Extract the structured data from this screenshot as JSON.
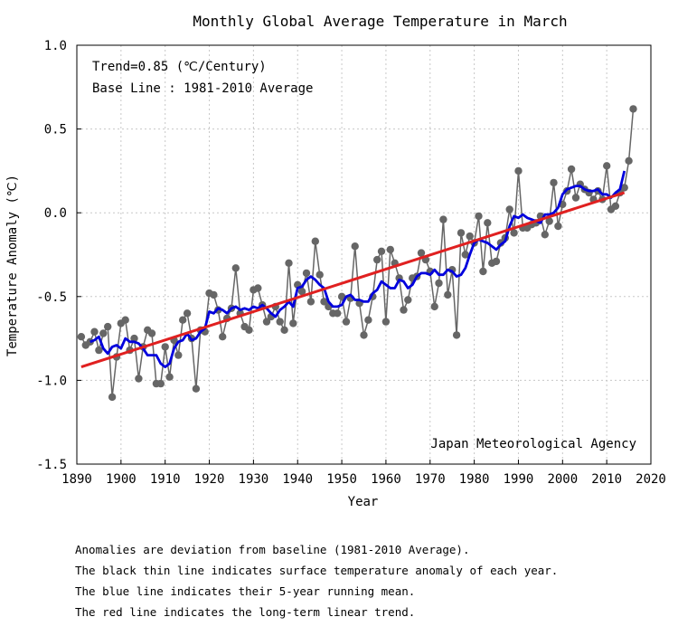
{
  "chart_data": {
    "type": "line",
    "title": "Monthly Global Average Temperature in March",
    "xlabel": "Year",
    "ylabel": "Temperature Anomaly (℃)",
    "xlim": [
      1890,
      2020
    ],
    "ylim": [
      -1.5,
      1.0
    ],
    "x_ticks": [
      1890,
      1900,
      1910,
      1920,
      1930,
      1940,
      1950,
      1960,
      1970,
      1980,
      1990,
      2000,
      2010,
      2020
    ],
    "y_ticks": [
      1.0,
      0.5,
      0.0,
      -0.5,
      -1.0,
      -1.5
    ],
    "y_tick_labels": [
      "1.0",
      "0.5",
      "0.0",
      "-0.5",
      "-1.0",
      "-1.5"
    ],
    "grid": true,
    "annotations": [
      "Trend=0.85 (℃/Century)",
      "Base Line : 1981-2010 Average",
      "Japan Meteorological Agency"
    ],
    "colors": {
      "anomaly": "#666666",
      "running_mean": "#0000dd",
      "trend": "#e02020"
    },
    "series": [
      {
        "role": "annual anomaly",
        "x": [
          1891,
          1892,
          1893,
          1894,
          1895,
          1896,
          1897,
          1898,
          1899,
          1900,
          1901,
          1902,
          1903,
          1904,
          1905,
          1906,
          1907,
          1908,
          1909,
          1910,
          1911,
          1912,
          1913,
          1914,
          1915,
          1916,
          1917,
          1918,
          1919,
          1920,
          1921,
          1922,
          1923,
          1924,
          1925,
          1926,
          1927,
          1928,
          1929,
          1930,
          1931,
          1932,
          1933,
          1934,
          1935,
          1936,
          1937,
          1938,
          1939,
          1940,
          1941,
          1942,
          1943,
          1944,
          1945,
          1946,
          1947,
          1948,
          1949,
          1950,
          1951,
          1952,
          1953,
          1954,
          1955,
          1956,
          1957,
          1958,
          1959,
          1960,
          1961,
          1962,
          1963,
          1964,
          1965,
          1966,
          1967,
          1968,
          1969,
          1970,
          1971,
          1972,
          1973,
          1974,
          1975,
          1976,
          1977,
          1978,
          1979,
          1980,
          1981,
          1982,
          1983,
          1984,
          1985,
          1986,
          1987,
          1988,
          1989,
          1990,
          1991,
          1992,
          1993,
          1994,
          1995,
          1996,
          1997,
          1998,
          1999,
          2000,
          2001,
          2002,
          2003,
          2004,
          2005,
          2006,
          2007,
          2008,
          2009,
          2010,
          2011,
          2012,
          2013,
          2014,
          2015,
          2016
        ],
        "values": [
          -0.74,
          -0.79,
          -0.77,
          -0.71,
          -0.82,
          -0.72,
          -0.68,
          -1.1,
          -0.86,
          -0.66,
          -0.64,
          -0.82,
          -0.75,
          -0.99,
          -0.8,
          -0.7,
          -0.72,
          -1.02,
          -1.02,
          -0.8,
          -0.98,
          -0.76,
          -0.85,
          -0.64,
          -0.6,
          -0.75,
          -1.05,
          -0.7,
          -0.71,
          -0.48,
          -0.49,
          -0.58,
          -0.74,
          -0.63,
          -0.57,
          -0.33,
          -0.6,
          -0.68,
          -0.7,
          -0.46,
          -0.45,
          -0.55,
          -0.65,
          -0.62,
          -0.56,
          -0.65,
          -0.7,
          -0.3,
          -0.66,
          -0.43,
          -0.47,
          -0.36,
          -0.53,
          -0.17,
          -0.37,
          -0.53,
          -0.56,
          -0.6,
          -0.6,
          -0.5,
          -0.65,
          -0.51,
          -0.2,
          -0.54,
          -0.73,
          -0.64,
          -0.5,
          -0.28,
          -0.23,
          -0.65,
          -0.22,
          -0.3,
          -0.39,
          -0.58,
          -0.52,
          -0.39,
          -0.38,
          -0.24,
          -0.28,
          -0.35,
          -0.56,
          -0.42,
          -0.04,
          -0.49,
          -0.34,
          -0.73,
          -0.12,
          -0.25,
          -0.14,
          -0.18,
          -0.02,
          -0.35,
          -0.06,
          -0.3,
          -0.29,
          -0.18,
          -0.15,
          0.02,
          -0.12,
          0.25,
          -0.09,
          -0.09,
          -0.07,
          -0.06,
          -0.02,
          -0.13,
          -0.05,
          0.18,
          -0.08,
          0.05,
          0.13,
          0.26,
          0.09,
          0.17,
          0.14,
          0.12,
          0.08,
          0.13,
          0.08,
          0.28,
          0.02,
          0.04,
          0.12,
          0.15,
          0.31,
          0.62
        ]
      },
      {
        "role": "5-year running mean",
        "x": [
          1893,
          1894,
          1895,
          1896,
          1897,
          1898,
          1899,
          1900,
          1901,
          1902,
          1903,
          1904,
          1905,
          1906,
          1907,
          1908,
          1909,
          1910,
          1911,
          1912,
          1913,
          1914,
          1915,
          1916,
          1917,
          1918,
          1919,
          1920,
          1921,
          1922,
          1923,
          1924,
          1925,
          1926,
          1927,
          1928,
          1929,
          1930,
          1931,
          1932,
          1933,
          1934,
          1935,
          1936,
          1937,
          1938,
          1939,
          1940,
          1941,
          1942,
          1943,
          1944,
          1945,
          1946,
          1947,
          1948,
          1949,
          1950,
          1951,
          1952,
          1953,
          1954,
          1955,
          1956,
          1957,
          1958,
          1959,
          1960,
          1961,
          1962,
          1963,
          1964,
          1965,
          1966,
          1967,
          1968,
          1969,
          1970,
          1971,
          1972,
          1973,
          1974,
          1975,
          1976,
          1977,
          1978,
          1979,
          1980,
          1981,
          1982,
          1983,
          1984,
          1985,
          1986,
          1987,
          1988,
          1989,
          1990,
          1991,
          1992,
          1993,
          1994,
          1995,
          1996,
          1997,
          1998,
          1999,
          2000,
          2001,
          2002,
          2003,
          2004,
          2005,
          2006,
          2007,
          2008,
          2009,
          2010,
          2011,
          2012,
          2013,
          2014
        ],
        "values": [
          -0.77,
          -0.76,
          -0.74,
          -0.81,
          -0.84,
          -0.8,
          -0.79,
          -0.81,
          -0.75,
          -0.77,
          -0.77,
          -0.78,
          -0.81,
          -0.85,
          -0.85,
          -0.85,
          -0.9,
          -0.92,
          -0.9,
          -0.81,
          -0.77,
          -0.76,
          -0.72,
          -0.76,
          -0.75,
          -0.71,
          -0.69,
          -0.59,
          -0.6,
          -0.57,
          -0.58,
          -0.6,
          -0.57,
          -0.56,
          -0.58,
          -0.57,
          -0.58,
          -0.56,
          -0.57,
          -0.55,
          -0.57,
          -0.6,
          -0.62,
          -0.58,
          -0.56,
          -0.53,
          -0.56,
          -0.45,
          -0.44,
          -0.4,
          -0.38,
          -0.4,
          -0.43,
          -0.45,
          -0.53,
          -0.56,
          -0.56,
          -0.55,
          -0.5,
          -0.49,
          -0.52,
          -0.52,
          -0.53,
          -0.53,
          -0.48,
          -0.46,
          -0.41,
          -0.43,
          -0.45,
          -0.45,
          -0.4,
          -0.41,
          -0.45,
          -0.43,
          -0.38,
          -0.36,
          -0.36,
          -0.37,
          -0.34,
          -0.37,
          -0.37,
          -0.34,
          -0.35,
          -0.38,
          -0.37,
          -0.33,
          -0.25,
          -0.18,
          -0.16,
          -0.17,
          -0.18,
          -0.2,
          -0.22,
          -0.19,
          -0.17,
          -0.08,
          -0.02,
          -0.03,
          -0.01,
          -0.03,
          -0.04,
          -0.05,
          -0.06,
          -0.01,
          -0.01,
          0.0,
          0.03,
          0.11,
          0.14,
          0.15,
          0.16,
          0.16,
          0.14,
          0.13,
          0.13,
          0.14,
          0.11,
          0.11,
          0.09,
          0.12,
          0.14,
          0.25
        ]
      },
      {
        "role": "long-term linear trend",
        "x": [
          1891,
          2014
        ],
        "values": [
          -0.92,
          0.12
        ]
      }
    ]
  },
  "notes": [
    "Anomalies are deviation from baseline (1981-2010 Average).",
    "The black thin line indicates surface temperature anomaly of each year.",
    "The blue line indicates their 5-year running mean.",
    "The red line indicates the long-term linear trend."
  ]
}
